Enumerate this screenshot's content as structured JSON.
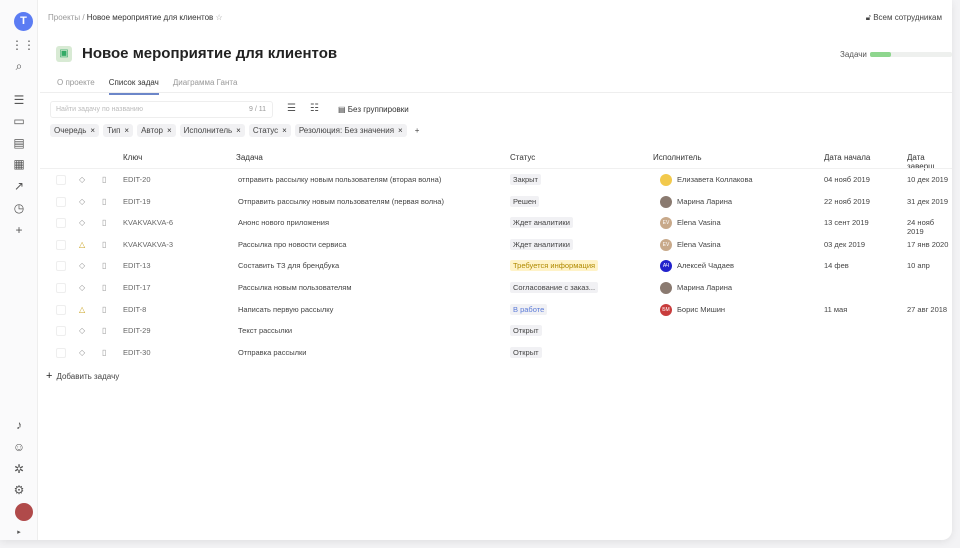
{
  "sidebar": {
    "logo": "T",
    "icons": [
      "apps-icon",
      "search-icon",
      "tasks-icon",
      "folder-icon",
      "inbox-icon",
      "board-icon",
      "chart-icon",
      "clock-icon",
      "plus-icon"
    ],
    "bottom_icons": [
      "bell-icon",
      "help-icon",
      "bug-icon",
      "gear-icon"
    ]
  },
  "breadcrumb": {
    "root": "Проекты",
    "current": "Новое мероприятие для клиентов"
  },
  "access": "Всем сотрудникам",
  "title": "Новое мероприятие для клиентов",
  "progress": {
    "label": "Задачи",
    "value": 0.25,
    "color": "#8ed68e"
  },
  "tabs": [
    {
      "label": "О проекте"
    },
    {
      "label": "Список задач",
      "active": true
    },
    {
      "label": "Диаграмма Ганта"
    }
  ],
  "search": {
    "placeholder": "Найти задачу по названию",
    "count": "9 / 11"
  },
  "grouping": "Без группировки",
  "filters": [
    "Очередь",
    "Тип",
    "Автор",
    "Исполнитель",
    "Статус",
    "Резолюция: Без значения"
  ],
  "columns": {
    "key": "Ключ",
    "task": "Задача",
    "status": "Статус",
    "assignee": "Исполнитель",
    "start": "Дата начала",
    "end": "Дата заверш"
  },
  "rows": [
    {
      "key": "EDIT-20",
      "task": "отправить рассылку новым пользователям (вторая волна)",
      "status": "Закрыт",
      "assignee": "Елизавета Коллакова",
      "initials": "",
      "av": "#f2c94c",
      "start": "04 нояб 2019",
      "end": "10 дек 2019",
      "pr": "◇"
    },
    {
      "key": "EDIT-19",
      "task": "Отправить рассылку новым пользователям (первая волна)",
      "status": "Решен",
      "assignee": "Марина Ларина",
      "initials": "",
      "av": "#8a7a70",
      "start": "22 нояб 2019",
      "end": "31 дек 2019",
      "pr": "◇"
    },
    {
      "key": "KVAKVAKVA-6",
      "task": "Анонс нового приложения",
      "status": "Ждет аналитики",
      "assignee": "Elena Vasina",
      "initials": "EV",
      "av": "#c8a98a",
      "start": "13 сент 2019",
      "end": "24 нояб 2019",
      "pr": "◇"
    },
    {
      "key": "KVAKVAKVA-3",
      "task": "Рассылка про новости сервиса",
      "status": "Ждет аналитики",
      "assignee": "Elena Vasina",
      "initials": "EV",
      "av": "#c8a98a",
      "start": "03 дек 2019",
      "end": "17 янв 2020",
      "pr": "△"
    },
    {
      "key": "EDIT-13",
      "task": "Составить ТЗ для брендбука",
      "status": "Требуется информация",
      "assignee": "Алексей Чадаев",
      "initials": "АЧ",
      "av": "#2222cc",
      "start": "14 фев",
      "end": "10 апр",
      "pr": "◇"
    },
    {
      "key": "EDIT-17",
      "task": "Рассылка новым пользователям",
      "status": "Согласование с заказ...",
      "assignee": "Марина Ларина",
      "initials": "",
      "av": "#8a7a70",
      "start": "",
      "end": "",
      "pr": "◇"
    },
    {
      "key": "EDIT-8",
      "task": "Написать первую рассылку",
      "status": "В работе",
      "assignee": "Борис Мишин",
      "initials": "БМ",
      "av": "#c83c3c",
      "start": "11 мая",
      "end": "27 авг 2018",
      "pr": "△"
    },
    {
      "key": "EDIT-29",
      "task": "Текст рассылки",
      "status": "Открыт",
      "assignee": "",
      "initials": "",
      "av": "",
      "start": "",
      "end": "",
      "pr": "◇"
    },
    {
      "key": "EDIT-30",
      "task": "Отправка рассылки",
      "status": "Открыт",
      "assignee": "",
      "initials": "",
      "av": "",
      "start": "",
      "end": "",
      "pr": "◇"
    }
  ],
  "add_task": "Добавить задачу"
}
